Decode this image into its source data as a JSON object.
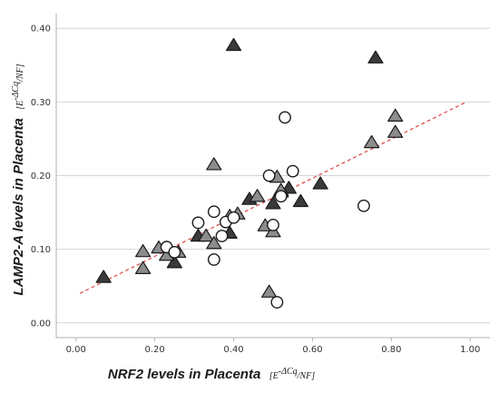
{
  "chart_data": {
    "type": "scatter",
    "xlabel": "NRF2 levels in Placenta",
    "xlabel_unit": "[E",
    "xlabel_unit_sup": "-ΔCq",
    "xlabel_unit_tail": "/NF]",
    "ylabel": "LAMP2-A levels in Placenta",
    "ylabel_unit": "[E",
    "ylabel_unit_sup": "-ΔCq",
    "ylabel_unit_tail": "/NF]",
    "xlim": [
      -0.05,
      1.05
    ],
    "ylim": [
      -0.02,
      0.42
    ],
    "x_ticks": [
      0.0,
      0.2,
      0.4,
      0.6,
      0.8,
      1.0
    ],
    "x_tick_labels": [
      "0.00",
      "0.20",
      "0.40",
      "0.60",
      "0.80",
      "1.00"
    ],
    "y_ticks": [
      0.0,
      0.1,
      0.2,
      0.3,
      0.4
    ],
    "y_tick_labels": [
      "0.00",
      "0.10",
      "0.20",
      "0.30",
      "0.40"
    ],
    "grid": "horizontal",
    "trendline": {
      "x": [
        0.01,
        0.99
      ],
      "y": [
        0.04,
        0.3
      ],
      "color": "#e05050"
    },
    "colors": {
      "dark": "#3a3a3a",
      "gray": "#8c8c8c",
      "open": "#ffffff",
      "outline": "#1a1a1a",
      "grid": "#d4d4d4"
    },
    "series": [
      {
        "marker": "triangle",
        "fill": "dark",
        "x": [
          0.07,
          0.25,
          0.31,
          0.39,
          0.4,
          0.44,
          0.5,
          0.52,
          0.54,
          0.57,
          0.62,
          0.76
        ],
        "y": [
          0.062,
          0.082,
          0.118,
          0.122,
          0.377,
          0.168,
          0.162,
          0.178,
          0.183,
          0.165,
          0.189,
          0.36
        ]
      },
      {
        "marker": "triangle",
        "fill": "gray",
        "x": [
          0.17,
          0.17,
          0.21,
          0.23,
          0.26,
          0.33,
          0.35,
          0.35,
          0.39,
          0.41,
          0.46,
          0.48,
          0.49,
          0.5,
          0.51,
          0.52,
          0.75,
          0.81,
          0.81
        ],
        "y": [
          0.097,
          0.074,
          0.102,
          0.092,
          0.096,
          0.118,
          0.108,
          0.215,
          0.145,
          0.148,
          0.172,
          0.132,
          0.042,
          0.124,
          0.198,
          0.18,
          0.245,
          0.281,
          0.259
        ],
        "_note_ignore": null
      },
      {
        "marker": "circle",
        "fill": "open",
        "x": [
          0.23,
          0.25,
          0.31,
          0.35,
          0.35,
          0.37,
          0.38,
          0.4,
          0.49,
          0.5,
          0.51,
          0.52,
          0.53,
          0.55,
          0.73
        ],
        "y": [
          0.103,
          0.096,
          0.136,
          0.086,
          0.151,
          0.118,
          0.137,
          0.143,
          0.2,
          0.133,
          0.028,
          0.172,
          0.279,
          0.206,
          0.159
        ]
      }
    ]
  }
}
